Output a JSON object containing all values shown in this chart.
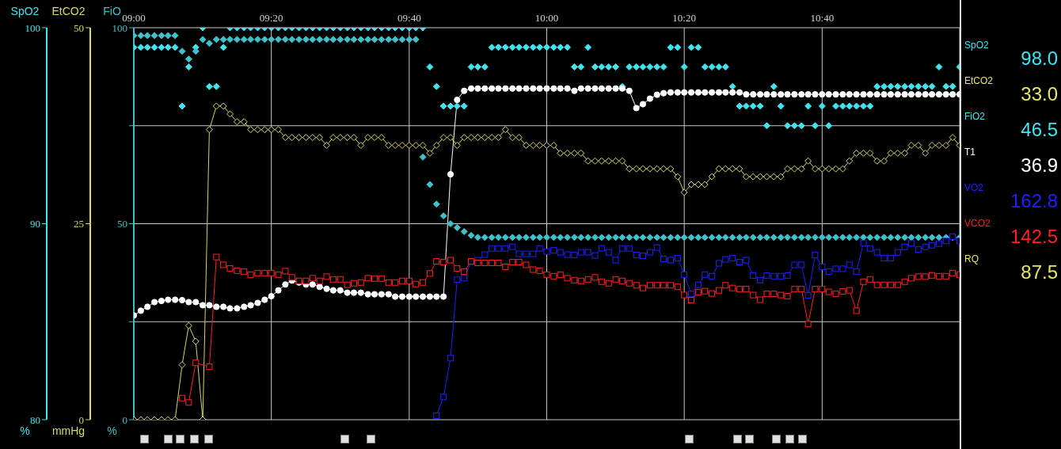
{
  "chart_data": [
    {
      "type": "line",
      "x": [
        9,
        9.017,
        9.033,
        9.05,
        9.067,
        9.083,
        9.1,
        9.117,
        9.133,
        9.15,
        9.167,
        9.183,
        9.2,
        9.217,
        9.233,
        9.25,
        9.267,
        9.283,
        9.3,
        9.317,
        9.333,
        9.35,
        9.367,
        9.383,
        9.4,
        9.417,
        9.433,
        9.45,
        9.467,
        9.483,
        9.5,
        9.517,
        9.533,
        9.55,
        9.567,
        9.583,
        9.6,
        9.617,
        9.633,
        9.65,
        9.667,
        9.683,
        9.7,
        9.717,
        9.733,
        9.75,
        9.767,
        9.783,
        9.8,
        9.817,
        9.833,
        9.85,
        9.867,
        9.883,
        9.9,
        9.917,
        9.933,
        9.95,
        9.967,
        9.983,
        10,
        10.017,
        10.033,
        10.05,
        10.067,
        10.083,
        10.1,
        10.117,
        10.133,
        10.15,
        10.167,
        10.183,
        10.2,
        10.217,
        10.233,
        10.25,
        10.267,
        10.283,
        10.3,
        10.317,
        10.333,
        10.35,
        10.367,
        10.383,
        10.4,
        10.417,
        10.433,
        10.45,
        10.467,
        10.483,
        10.5,
        10.517,
        10.533,
        10.55,
        10.567,
        10.583,
        10.6,
        10.617,
        10.633,
        10.65,
        10.667,
        10.683,
        10.7,
        10.717,
        10.733,
        10.75,
        10.767,
        10.783,
        10.8,
        10.817,
        10.833,
        10.85,
        10.867,
        10.883,
        10.9,
        10.917,
        10.933,
        10.95,
        10.967,
        10.983,
        11
      ],
      "xlim": [
        9,
        11
      ],
      "xticks": [
        {
          "value": 9,
          "label": "09:00"
        },
        {
          "value": 9.333,
          "label": "09:20"
        },
        {
          "value": 9.667,
          "label": "09:40"
        },
        {
          "value": 10,
          "label": "10:00"
        },
        {
          "value": 10.333,
          "label": "10:20"
        },
        {
          "value": 10.667,
          "label": "10:40"
        }
      ],
      "ylim": [
        80,
        100
      ],
      "yticks": [
        80,
        90,
        100
      ],
      "ylabel": "SpO2",
      "y2lim": [
        0,
        50
      ],
      "y2ticks": [
        0,
        25,
        50
      ],
      "y2label": "EtCO2",
      "y3lim": [
        0,
        100
      ],
      "y3ticks": [
        0,
        {
          "value": 25,
          "label": null
        },
        50,
        {
          "value": 75,
          "label": null
        },
        100
      ],
      "y3label": "FiO",
      "annotations": [
        "%",
        "mmHg",
        "%"
      ],
      "grid": true,
      "series": [
        {
          "type": "scatter",
          "axis": "y",
          "color": "#40e4f0",
          "marker": "diamond",
          "values": [
            99,
            99,
            99,
            99,
            99,
            99,
            99,
            96,
            98,
            99,
            100,
            97,
            97,
            99,
            100,
            100,
            100,
            100,
            100,
            100,
            100,
            100,
            100,
            100,
            100,
            100,
            100,
            100,
            100,
            100,
            100,
            100,
            100,
            100,
            100,
            100,
            100,
            100,
            100,
            100,
            100,
            100,
            100,
            98,
            97,
            96,
            96,
            96,
            96,
            98,
            98,
            98,
            99,
            99,
            99,
            99,
            99,
            99,
            99,
            99,
            99,
            99,
            99,
            99,
            98,
            98,
            99,
            98,
            98,
            98,
            98,
            97,
            98,
            98,
            98,
            98,
            98,
            98,
            99,
            99,
            98,
            99,
            99,
            98,
            98,
            98,
            98,
            97,
            96,
            96,
            96,
            96,
            95,
            97,
            96,
            95,
            95,
            95,
            96,
            95,
            96,
            95,
            96,
            96,
            96,
            96,
            96,
            96,
            97,
            97,
            97,
            97,
            97,
            97,
            97,
            97,
            97,
            98,
            97,
            97,
            98
          ]
        },
        {
          "type": "line",
          "axis": "y2",
          "color": "#d8d860",
          "marker": "diamond",
          "values": [
            0,
            0,
            0,
            0,
            0,
            0,
            0,
            7,
            12,
            10,
            0,
            37,
            40,
            40,
            39,
            38,
            38,
            37,
            37,
            37,
            37,
            37,
            36,
            36,
            36,
            36,
            36,
            36,
            35,
            36,
            36,
            36,
            36,
            35,
            36,
            36,
            36,
            35,
            35,
            35,
            35,
            35,
            35,
            34,
            35,
            36,
            36,
            35,
            36,
            36,
            36,
            36,
            36,
            36,
            37,
            36,
            36,
            35,
            35,
            35,
            35,
            35,
            34,
            34,
            34,
            34,
            33,
            33,
            33,
            33,
            33,
            33,
            32,
            32,
            32,
            32,
            32,
            32,
            32,
            31,
            29,
            30,
            30,
            30,
            31,
            32,
            32,
            32,
            32,
            31,
            31,
            31,
            31,
            31,
            31,
            32,
            32,
            32,
            33,
            32,
            32,
            32,
            32,
            32,
            33,
            34,
            34,
            34,
            33,
            33,
            34,
            34,
            34,
            35,
            35,
            34,
            35,
            35,
            35,
            36,
            35
          ]
        },
        {
          "type": "scatter",
          "axis": "y3",
          "color": "#40c0c8",
          "marker": "diamond",
          "values": [
            98,
            98,
            98,
            98,
            98,
            98,
            98,
            94,
            92,
            94,
            97,
            96,
            97,
            97,
            97,
            97,
            97,
            97,
            97,
            97,
            97,
            97,
            97,
            97,
            97,
            97,
            97,
            97,
            97,
            97,
            97,
            97,
            97,
            97,
            97,
            97,
            97,
            97,
            97,
            97,
            97,
            97,
            67,
            60,
            55,
            52,
            50,
            49,
            48,
            47,
            46.5,
            46.5,
            46.5,
            46.5,
            46.5,
            46.5,
            46.5,
            46.5,
            46.5,
            46.5,
            46.5,
            46.5,
            46.5,
            46.5,
            46.5,
            46.5,
            46.5,
            46.5,
            46.5,
            46.5,
            46.5,
            46.5,
            46.5,
            46.5,
            46.5,
            46.5,
            46.5,
            46.5,
            46.5,
            46.5,
            46.5,
            46.5,
            46.5,
            46.5,
            46.5,
            46.5,
            46.5,
            46.5,
            46.5,
            46.5,
            46.5,
            46.5,
            46.5,
            46.5,
            46.5,
            46.5,
            46.5,
            46.5,
            46.5,
            46.5,
            46.5,
            46.5,
            46.5,
            46.5,
            46.5,
            46.5,
            46.5,
            46.5,
            46.5,
            46.5,
            46.5,
            46.5,
            46.5,
            46.5,
            46.5,
            46.5,
            46.5,
            46.5,
            46.5,
            46.5,
            46.5
          ]
        },
        {
          "type": "line",
          "axis": "y3",
          "color": "#ffffff",
          "marker": "circle",
          "values": [
            26.6,
            27.8,
            28.8,
            30,
            30.3,
            30.6,
            30.6,
            30.5,
            30,
            30,
            29.2,
            29.2,
            28.8,
            28.8,
            28.4,
            28.4,
            28.8,
            29.2,
            29.8,
            30.6,
            31.5,
            33,
            34.5,
            35.5,
            35,
            34.5,
            34.5,
            33.9,
            33.4,
            33,
            33,
            32.4,
            32.4,
            32.4,
            32,
            32,
            32,
            32,
            31.4,
            31.4,
            31.4,
            31.4,
            31.4,
            31.4,
            31.4,
            31.4,
            62.6,
            81.6,
            83.9,
            84.5,
            84.5,
            84.5,
            84.5,
            84.5,
            84.5,
            84.5,
            84.5,
            84.5,
            84.5,
            84.5,
            84.5,
            84.5,
            84.5,
            84.5,
            83.9,
            84.5,
            84.5,
            84.5,
            84.5,
            84.5,
            84.5,
            84.5,
            83.9,
            79.5,
            80.5,
            81.9,
            82.9,
            83.3,
            83.5,
            83.5,
            83.5,
            83.5,
            83.5,
            83.5,
            83.5,
            83.5,
            83.5,
            83.5,
            83.5,
            83,
            83,
            83,
            83,
            83,
            83,
            83,
            83,
            83,
            83,
            83,
            83,
            83,
            83,
            83,
            83,
            83,
            83,
            83,
            83,
            83,
            83,
            83,
            83,
            83,
            83,
            83,
            83,
            83,
            83,
            83,
            83
          ]
        },
        {
          "type": "line",
          "axis": "y3",
          "color": "#2020ff",
          "marker": "square",
          "values": [
            null,
            null,
            null,
            null,
            null,
            null,
            null,
            null,
            null,
            null,
            null,
            null,
            null,
            null,
            null,
            null,
            null,
            null,
            null,
            null,
            null,
            null,
            null,
            null,
            null,
            null,
            null,
            null,
            null,
            null,
            null,
            null,
            null,
            null,
            null,
            null,
            null,
            null,
            null,
            null,
            null,
            null,
            null,
            null,
            1,
            5.8,
            15.7,
            35.7,
            36.1,
            40.4,
            40.7,
            42.1,
            43.7,
            43.7,
            43.7,
            44.1,
            42.3,
            42.3,
            42.3,
            43.7,
            42.9,
            43.2,
            42.7,
            42.1,
            42,
            42.7,
            42.7,
            41.9,
            43.7,
            42.7,
            40.7,
            43.7,
            43.7,
            42,
            41.8,
            42.7,
            43.9,
            41,
            40.7,
            41.2,
            37,
            32.1,
            34.4,
            37,
            36.6,
            39.9,
            40.9,
            41.2,
            40.2,
            40.7,
            36.8,
            35.6,
            36.8,
            36.6,
            36.6,
            36.8,
            39.5,
            39.5,
            31.7,
            42,
            39,
            37.8,
            38.5,
            38.5,
            39.5,
            37.8,
            45,
            43.7,
            42.7,
            41.2,
            41.2,
            42.7,
            44.1,
            45,
            43.4,
            44.1,
            44.5,
            44.9,
            45.6,
            46.7,
            45.6
          ]
        },
        {
          "type": "line",
          "axis": "y3",
          "color": "#ff2020",
          "marker": "square",
          "values": [
            null,
            null,
            null,
            null,
            null,
            null,
            null,
            5.5,
            4.4,
            14.5,
            null,
            13.5,
            41.5,
            39.5,
            38.6,
            38,
            37.8,
            37,
            37.4,
            37.4,
            37.4,
            37,
            37.9,
            36.3,
            35.4,
            35.4,
            36.1,
            35.4,
            36.5,
            35.8,
            35.8,
            34.4,
            34.8,
            35,
            36.1,
            36,
            36,
            35,
            35,
            35.4,
            35.4,
            34.6,
            35,
            37.3,
            40.4,
            40.2,
            40.7,
            38.6,
            37.8,
            40.4,
            40,
            40,
            40,
            40,
            39,
            40.2,
            40.2,
            39.5,
            38.3,
            38,
            37,
            36.6,
            37,
            36.1,
            35.6,
            35.4,
            35.8,
            36.3,
            35.2,
            34.8,
            35.8,
            35.4,
            34.8,
            34.3,
            33.6,
            34.3,
            34.3,
            34.3,
            34.3,
            33.9,
            31.8,
            30.5,
            32.5,
            32.8,
            32.2,
            33,
            34.3,
            33.6,
            33.3,
            33.3,
            31.8,
            30.6,
            32.1,
            32.1,
            31.8,
            31.5,
            33.3,
            33.3,
            24.4,
            33.3,
            33.3,
            32.6,
            32.1,
            32.7,
            33,
            27.8,
            35.2,
            35.8,
            34.4,
            34.4,
            34.4,
            34.4,
            35.2,
            36.1,
            36.5,
            36.5,
            36.8,
            36.6,
            36.6,
            37.4,
            37
          ]
        }
      ]
    },
    {
      "type": "other",
      "categories": [
        "SpO2",
        "EtCO2",
        "FiO2",
        "T1",
        "VO2",
        "VCO2",
        "RQ"
      ],
      "value_labels": [
        "98.0",
        "33.0",
        "46.5",
        "36.9",
        "162.8",
        "142.5",
        "87.5"
      ],
      "colors": [
        "#40e4f0",
        "#e8e860",
        "#40e4f0",
        "#ffffff",
        "#2020ff",
        "#ff2020",
        "#e8e860"
      ]
    }
  ]
}
